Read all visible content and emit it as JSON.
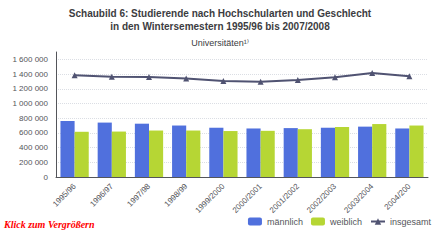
{
  "chart_data": {
    "type": "bar",
    "title": "Schaubild 6: Studierende nach Hochschularten und Geschlecht\nin den Wintersemestern 1995/96 bis 2007/2008",
    "subtitle": "Universitäten¹⁾",
    "categories": [
      "1995/96",
      "1996/97",
      "1997/98",
      "1998/99",
      "1999/2000",
      "2000/2001",
      "2001/2002",
      "2002/2003",
      "2003/2004",
      "2004/200"
    ],
    "series": [
      {
        "name": "männlich",
        "values": [
          760000,
          740000,
          725000,
          700000,
          670000,
          660000,
          665000,
          670000,
          685000,
          660000
        ]
      },
      {
        "name": "weiblich",
        "values": [
          615000,
          618000,
          632000,
          632000,
          625000,
          628000,
          650000,
          680000,
          720000,
          700000
        ]
      },
      {
        "name": "insgesamt",
        "type": "line",
        "marker": "triangle",
        "values": [
          1385000,
          1365000,
          1360000,
          1340000,
          1305000,
          1295000,
          1320000,
          1355000,
          1415000,
          1370000
        ]
      }
    ],
    "ylim": [
      0,
      1700000
    ],
    "yticks": [
      0,
      {
        "value": 200000,
        "label": "200 000"
      },
      {
        "value": 400000,
        "label": "400 000"
      },
      {
        "value": 600000,
        "label": "600 000"
      },
      {
        "value": 800000,
        "label": "800 000"
      },
      {
        "value": 1000000,
        "label": "1 000 000"
      },
      {
        "value": 1200000,
        "label": "1 200 000"
      },
      {
        "value": 1400000,
        "label": "1 400 000"
      },
      {
        "value": 1600000,
        "label": "1 600 000"
      }
    ],
    "grid": true,
    "legend": "lower right",
    "annotations": [
      {
        "text": "Klick zum Vergrößern",
        "color": "#ff0000"
      }
    ]
  }
}
